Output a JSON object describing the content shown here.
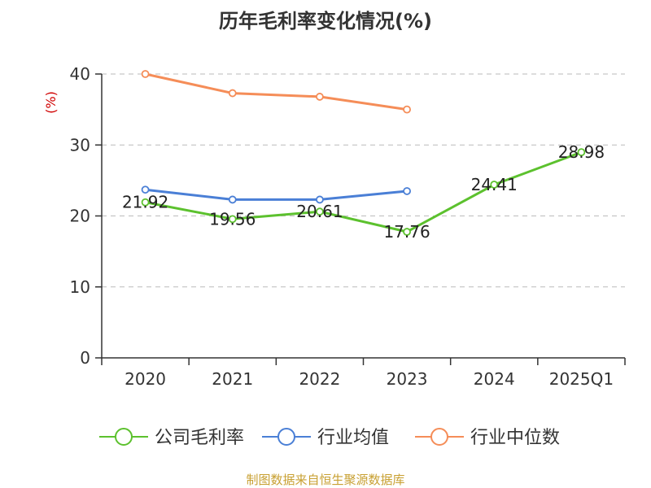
{
  "chart_data": {
    "type": "line",
    "title": "历年毛利率变化情况(%)",
    "ylabel": "(%)",
    "categories": [
      "2020",
      "2021",
      "2022",
      "2023",
      "2024",
      "2025Q1"
    ],
    "ylim": [
      0,
      40
    ],
    "yticks": [
      "0",
      "10",
      "20",
      "30",
      "40"
    ],
    "grid": true,
    "legend_position": "bottom",
    "series": [
      {
        "name": "公司毛利率",
        "color": "#5cc12e",
        "values": [
          21.92,
          19.56,
          20.61,
          17.76,
          24.41,
          28.98
        ],
        "labels": [
          "21.92",
          "19.56",
          "20.61",
          "17.76",
          "24.41",
          "28.98"
        ]
      },
      {
        "name": "行业均值",
        "color": "#4a7fd6",
        "values": [
          23.7,
          22.3,
          22.3,
          23.5,
          null,
          null
        ]
      },
      {
        "name": "行业中位数",
        "color": "#f58d58",
        "values": [
          40.0,
          37.3,
          36.8,
          35.0,
          null,
          null
        ]
      }
    ]
  },
  "footer": {
    "source": "制图数据来自恒生聚源数据库"
  }
}
